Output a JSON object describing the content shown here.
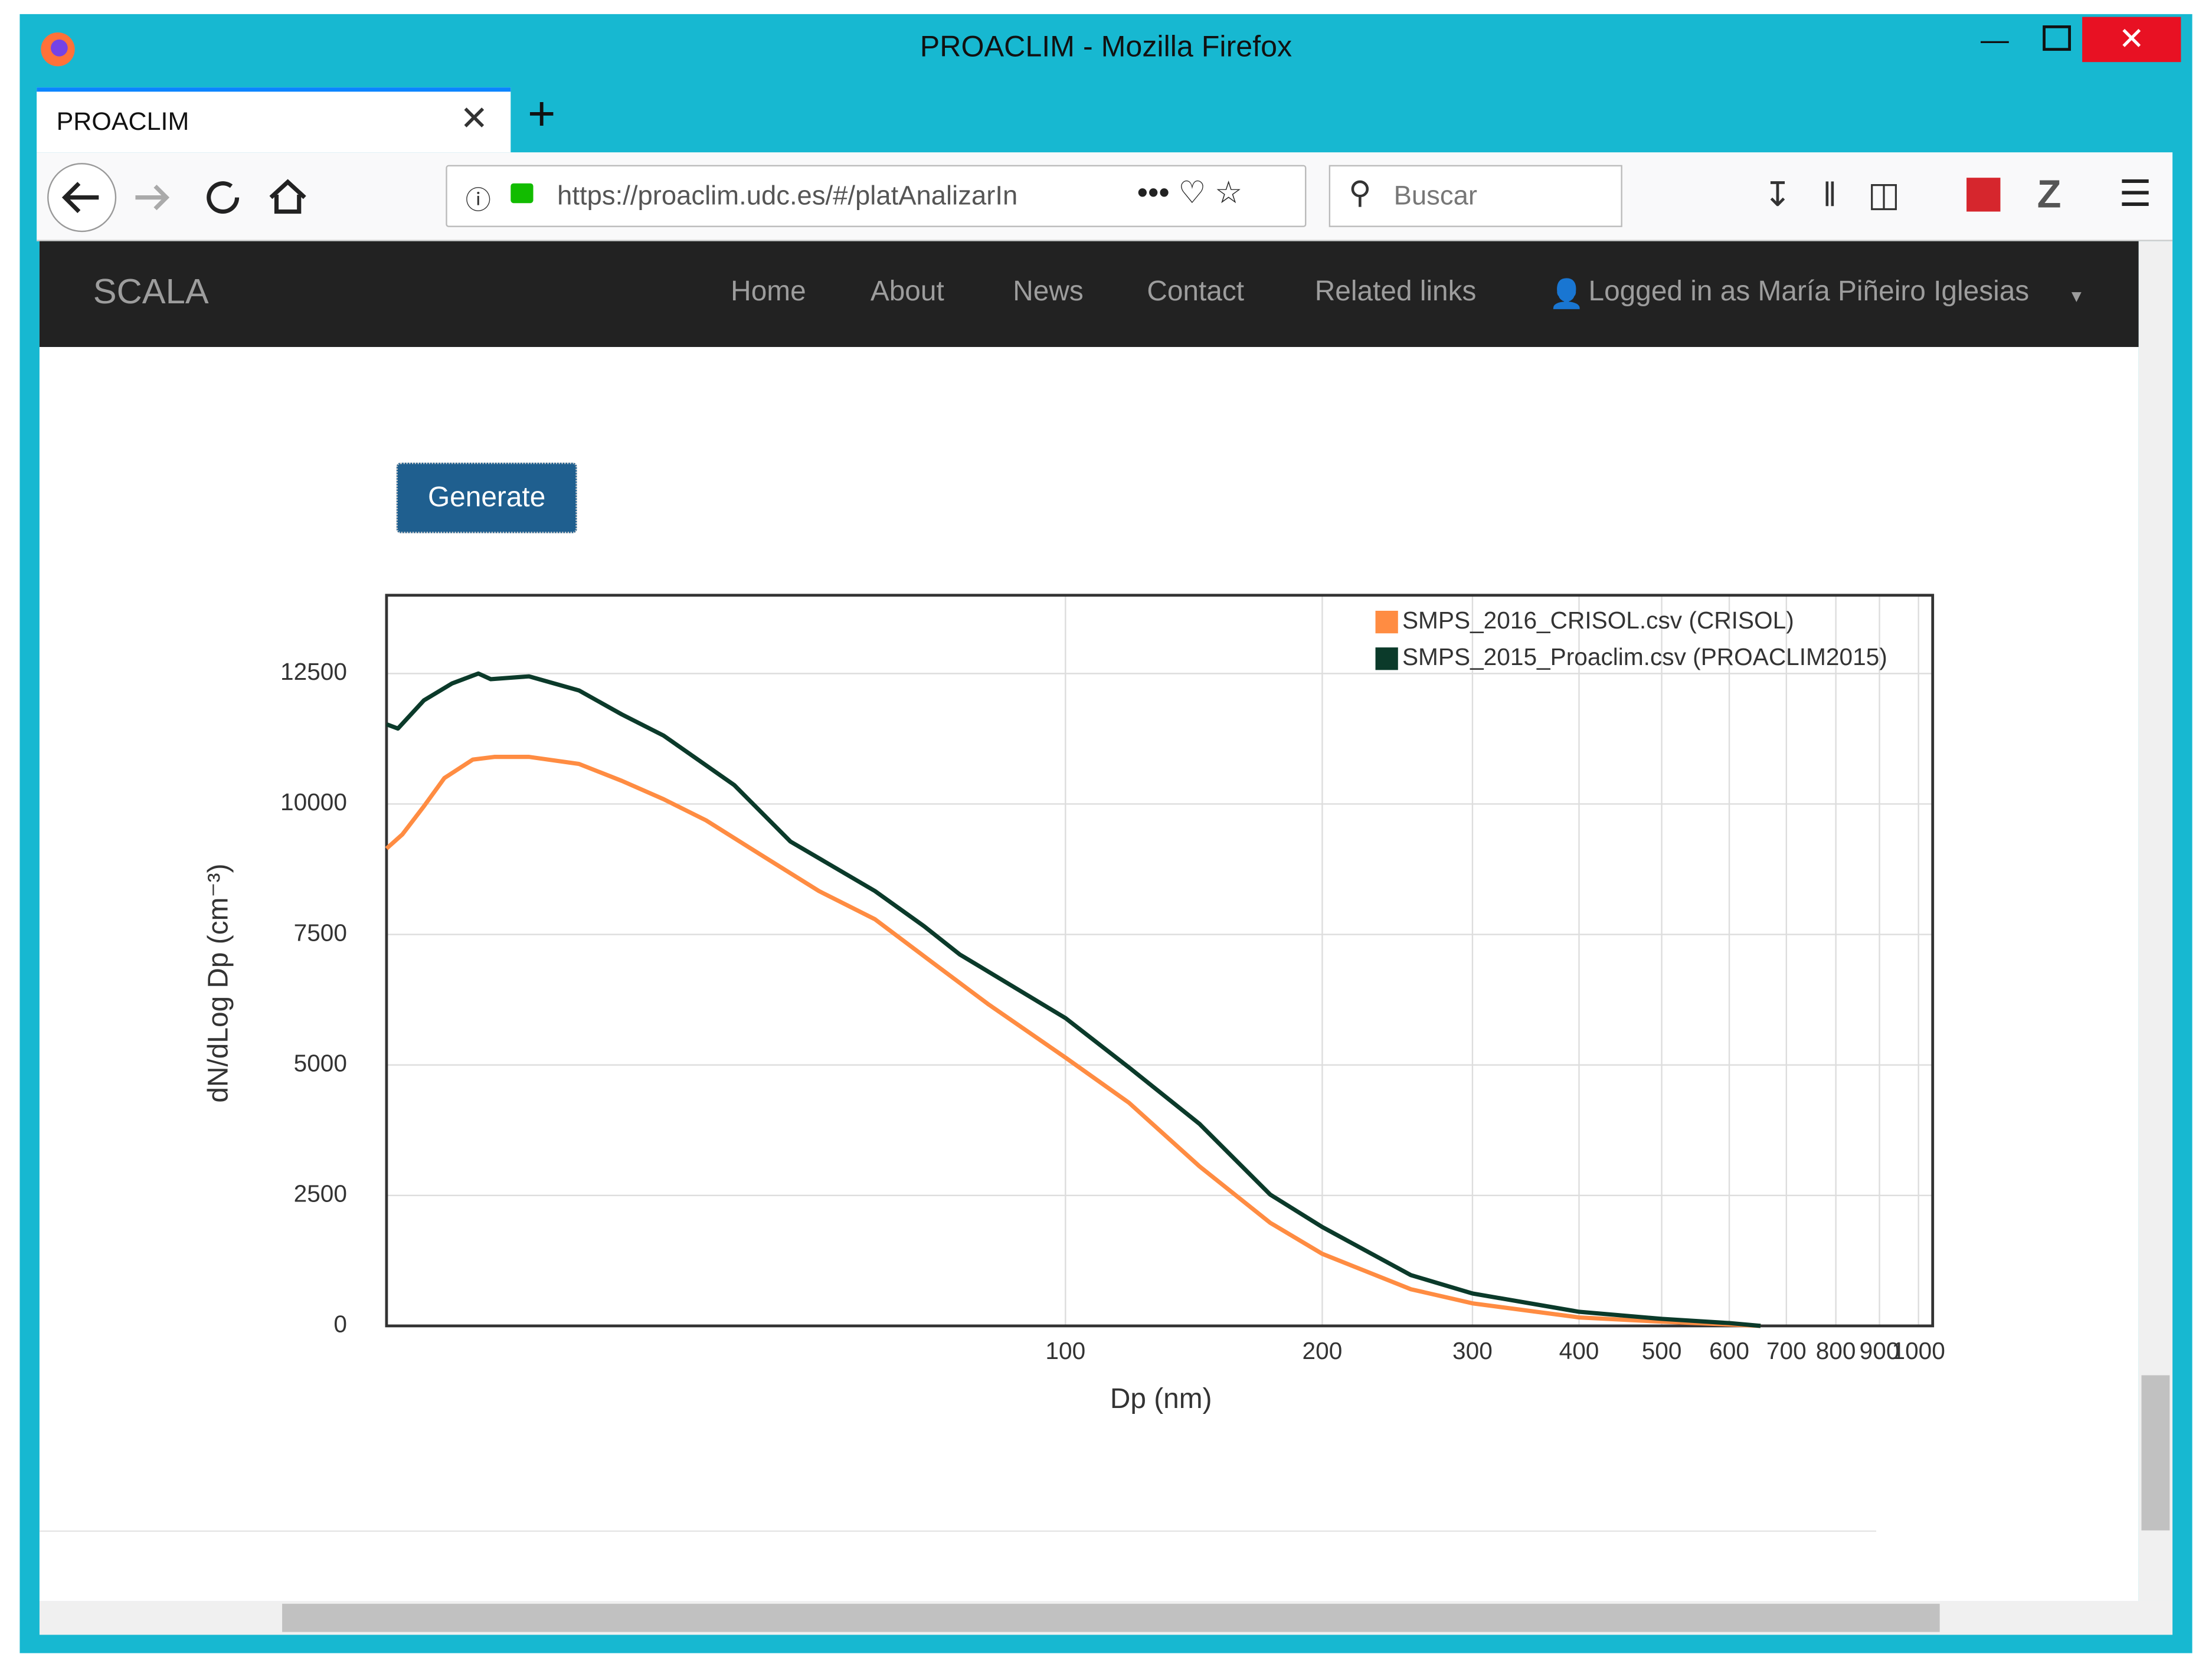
{
  "window": {
    "title": "PROACLIM - Mozilla Firefox"
  },
  "tab": {
    "title": "PROACLIM"
  },
  "toolbar": {
    "url": "https://proaclim.udc.es/#/platAnalizarIn",
    "search": "Buscar"
  },
  "navbar": {
    "brand": "SCALA",
    "links": [
      "Home",
      "About",
      "News",
      "Contact",
      "Related links"
    ],
    "user": "Logged in as María Piñeiro Iglesias"
  },
  "button": {
    "label": "Generate"
  },
  "chart_data": {
    "type": "line",
    "x_label": "Dp (nm)",
    "y_label": "dN/dLog Dp (cm⁻³)",
    "x_scale": "log",
    "xlim": [
      16,
      1039
    ],
    "ylim": [
      0,
      14000
    ],
    "xticks": [
      100,
      200,
      300,
      400,
      500,
      600,
      700,
      800,
      900,
      1000
    ],
    "yticks": [
      0,
      2500,
      5000,
      7500,
      10000,
      12500
    ],
    "grid": true,
    "legend": "top-right",
    "series": [
      {
        "name": "SMPS_2016_CRISOL.csv (CRISOL)",
        "color": "#ff8c42",
        "x": [
          16.0,
          16.7,
          17.7,
          18.7,
          20.2,
          21.4,
          23.5,
          26.9,
          30.2,
          33.8,
          37.9,
          44.1,
          51.4,
          59.8,
          69.6,
          81.1,
          100,
          118.7,
          143.6,
          173.8,
          200,
          254,
          300,
          400,
          500,
          600,
          653
        ],
        "values": [
          9145,
          9416,
          9957,
          10498,
          10850,
          10904,
          10904,
          10768,
          10444,
          10092,
          9686,
          9010,
          8333,
          7792,
          6981,
          6169,
          5141,
          4275,
          3057,
          1975,
          1380,
          703,
          433,
          162,
          81,
          27,
          0
        ]
      },
      {
        "name": "SMPS_2015_Proaclim.csv (PROACLIM2015)",
        "color": "#0b3a2a",
        "x": [
          16.0,
          16.5,
          17.7,
          19.1,
          20.5,
          21.2,
          23.5,
          26.9,
          30.2,
          33.8,
          40.9,
          47.6,
          59.8,
          68.3,
          75.2,
          100,
          118.7,
          143.6,
          173.8,
          200,
          254,
          300,
          400,
          500,
          600,
          653
        ],
        "values": [
          11526,
          11445,
          11986,
          12310,
          12500,
          12392,
          12446,
          12175,
          11715,
          11310,
          10363,
          9280,
          8333,
          7657,
          7116,
          5898,
          4952,
          3869,
          2516,
          1894,
          974,
          622,
          271,
          135,
          54,
          0
        ]
      }
    ]
  }
}
